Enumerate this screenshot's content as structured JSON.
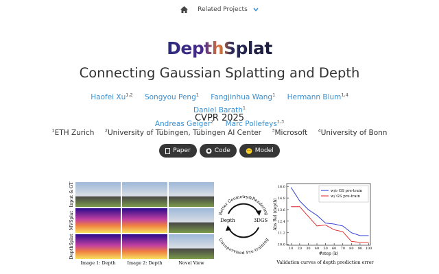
{
  "nav": {
    "item": "Related Projects"
  },
  "logo": "DepthSplat",
  "title": "Connecting Gaussian Splatting and Depth",
  "authors": [
    {
      "name": "Haofei Xu",
      "aff": "1,2"
    },
    {
      "name": "Songyou Peng",
      "aff": "1"
    },
    {
      "name": "Fangjinhua Wang",
      "aff": "1"
    },
    {
      "name": "Hermann Blum",
      "aff": "1,4"
    },
    {
      "name": "Daniel Barath",
      "aff": "1"
    },
    {
      "name": "Andreas Geiger",
      "aff": "2"
    },
    {
      "name": "Marc Pollefeys",
      "aff": "1,3"
    }
  ],
  "venue": "CVPR 2025",
  "affiliations": [
    {
      "num": "1",
      "name": "ETH Zurich"
    },
    {
      "num": "2",
      "name": "University of Tübingen, Tübingen AI Center"
    },
    {
      "num": "3",
      "name": "Microsoft"
    },
    {
      "num": "4",
      "name": "University of Bonn"
    }
  ],
  "buttons": [
    "Paper",
    "Code",
    "Model"
  ],
  "figure": {
    "row_labels": [
      "Input & GT",
      "MVSplat",
      "DepthSplat"
    ],
    "column_labels": [
      "Image 1: Depth",
      "Image 2: Depth",
      "Novel View"
    ]
  },
  "diagram": {
    "top": "Better Geometry&Rendering",
    "left": "Depth",
    "right": "3DGS",
    "bottom": "Unsupervised Pre-training"
  },
  "chart_data": {
    "type": "line",
    "caption": "Validation curves of depth prediction error",
    "x_label": "#step (k)",
    "y_label": "Abs Rel (depth)",
    "x": [
      10,
      20,
      30,
      40,
      50,
      60,
      70,
      80,
      90,
      100
    ],
    "series": [
      {
        "name": "w/o GS pre-train",
        "color": "#1f2fd0",
        "values": [
          15.9,
          14.5,
          13.6,
          13.0,
          12.2,
          12.1,
          11.9,
          11.2,
          10.9,
          10.9
        ]
      },
      {
        "name": "w/ GS pre-train",
        "color": "#e02020",
        "values": [
          13.9,
          13.9,
          12.9,
          11.9,
          12.0,
          11.5,
          11.3,
          10.3,
          10.2,
          10.2
        ]
      }
    ],
    "xlim": [
      5,
      102
    ],
    "ylim": [
      9.9,
      16.3
    ],
    "xticks": [
      10,
      20,
      30,
      40,
      50,
      60,
      70,
      80,
      90,
      100
    ],
    "yticks": [
      {
        "value": 10,
        "label": "10.0"
      },
      {
        "value": 11.2,
        "label": "11.2"
      },
      {
        "value": 12.4,
        "label": "12.4"
      },
      {
        "value": 13.6,
        "label": "13.6"
      },
      {
        "value": 14.8,
        "label": "14.8"
      },
      {
        "value": 16,
        "label": "16.0"
      }
    ],
    "legend": "upper right"
  }
}
